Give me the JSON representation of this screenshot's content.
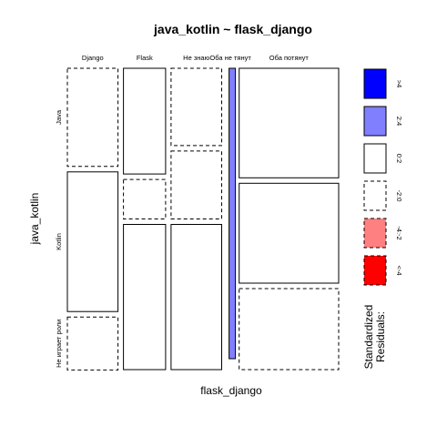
{
  "chart_data": {
    "type": "mosaic",
    "title": "java_kotlin ~ flask_django",
    "xlabel": "flask_django",
    "ylabel": "java_kotlin",
    "x_categories": [
      "Django",
      "Flask",
      "Не знаю",
      "Оба не тянут",
      "Оба потянут"
    ],
    "y_categories": [
      "Java",
      "Kotlin",
      "Не играет роли"
    ],
    "counts_note": "relative proportions estimated from tile areas",
    "columns": [
      {
        "name": "Django",
        "share": 0.203,
        "cells": [
          {
            "row": "Java",
            "proportion": 0.338,
            "residual_class": "-2:0"
          },
          {
            "row": "Kotlin",
            "proportion": 0.481,
            "residual_class": "0:2"
          },
          {
            "row": "Не играет роли",
            "proportion": 0.182,
            "residual_class": "-2:0"
          }
        ]
      },
      {
        "name": "Flask",
        "share": 0.169,
        "cells": [
          {
            "row": "Java",
            "proportion": 0.364,
            "residual_class": "0:2"
          },
          {
            "row": "Kotlin",
            "proportion": 0.136,
            "residual_class": "-2:0"
          },
          {
            "row": "Не играет роли",
            "proportion": 0.5,
            "residual_class": "0:2"
          }
        ]
      },
      {
        "name": "Не знаю",
        "share": 0.203,
        "cells": [
          {
            "row": "Java",
            "proportion": 0.266,
            "residual_class": "-2:0"
          },
          {
            "row": "Kotlin",
            "proportion": 0.234,
            "residual_class": "-2:0"
          },
          {
            "row": "Не играет роли",
            "proportion": 0.5,
            "residual_class": "0:2"
          }
        ]
      },
      {
        "name": "Оба не тянут",
        "share": 0.026,
        "cells": [
          {
            "row": "Java",
            "proportion": 0,
            "residual_class": "0:2"
          },
          {
            "row": "Kotlin",
            "proportion": 1,
            "residual_class": "2:4"
          },
          {
            "row": "Не играет роли",
            "proportion": 0,
            "residual_class": "0:2"
          }
        ]
      },
      {
        "name": "Оба потянут",
        "share": 0.399,
        "cells": [
          {
            "row": "Java",
            "proportion": 0.377,
            "residual_class": "0:2"
          },
          {
            "row": "Kotlin",
            "proportion": 0.344,
            "residual_class": "0:2"
          },
          {
            "row": "Не играет роли",
            "proportion": 0.279,
            "residual_class": "-2:0"
          }
        ]
      }
    ],
    "legend": {
      "title_lines": [
        "Standardized",
        "Residuals:"
      ],
      "placement": "right",
      "items": [
        {
          "label": ">4",
          "fill": "#0000ff",
          "dashed": false
        },
        {
          "label": "2:4",
          "fill": "#8080ff",
          "dashed": false
        },
        {
          "label": "0:2",
          "fill": "#ffffff",
          "dashed": false
        },
        {
          "label": "-2:0",
          "fill": "#ffffff",
          "dashed": true
        },
        {
          "label": "-4:-2",
          "fill": "#ff8080",
          "dashed": true
        },
        {
          "label": "<-4",
          "fill": "#ff0000",
          "dashed": true
        }
      ]
    }
  }
}
